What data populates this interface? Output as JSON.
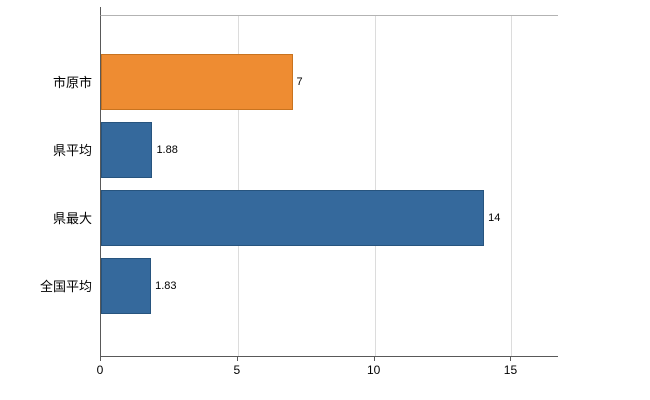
{
  "chart_data": {
    "type": "bar",
    "orientation": "horizontal",
    "title": "",
    "xlabel": "",
    "ylabel": "",
    "categories": [
      "市原市",
      "県平均",
      "県最大",
      "全国平均"
    ],
    "values": [
      7,
      1.88,
      14,
      1.83
    ],
    "value_labels": [
      "7",
      "1.88",
      "14",
      "1.83"
    ],
    "series": [
      {
        "name": "",
        "values": [
          7,
          1.88,
          14,
          1.83
        ]
      }
    ],
    "bar_colors": [
      "#ee8c32",
      "#35699c",
      "#35699c",
      "#35699c"
    ],
    "bar_border_colors": [
      "#c8731f",
      "#27547e",
      "#27547e",
      "#27547e"
    ],
    "xlim": [
      0,
      16.7
    ],
    "xticks": [
      0,
      5,
      10,
      15
    ],
    "grid": true,
    "legend_position": "none",
    "colors": {
      "highlight_orange": "#ee8c32",
      "base_blue": "#35699c",
      "gridline": "#dcdcdc",
      "axis": "#595959",
      "background": "#ffffff"
    }
  }
}
